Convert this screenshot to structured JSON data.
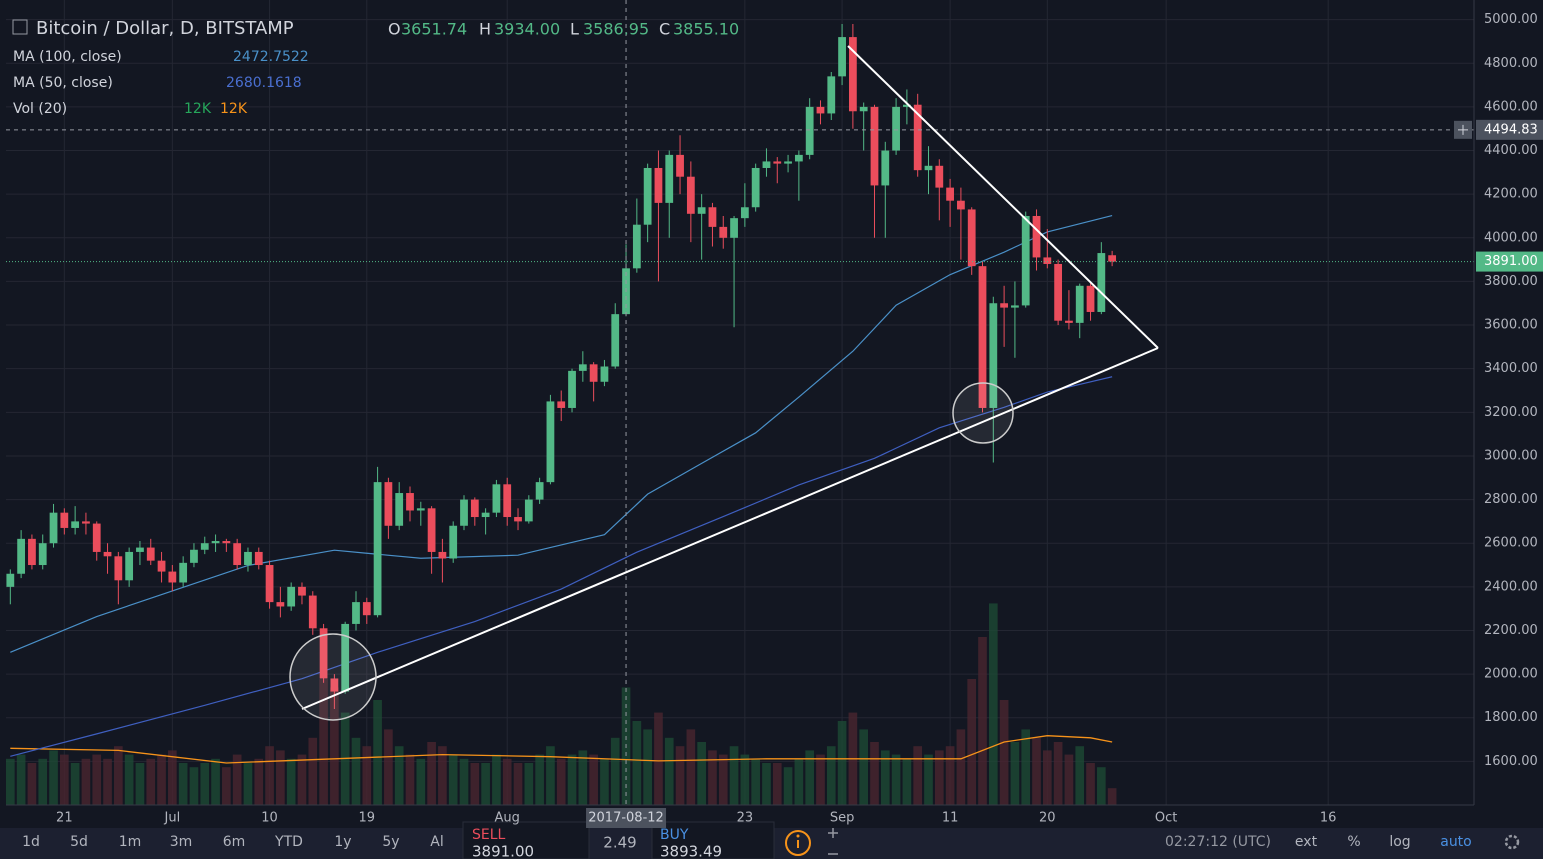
{
  "header": {
    "symbol": "Bitcoin / Dollar, D, BITSTAMP",
    "o_label": "O",
    "o": "3651.74",
    "h_label": "H",
    "h": "3934.00",
    "l_label": "L",
    "l": "3586.95",
    "c_label": "C",
    "c": "3855.10"
  },
  "legend": [
    {
      "name": "MA (100, close)",
      "value": "2472.7522"
    },
    {
      "name": "MA (50, close)",
      "value": "2680.1618"
    },
    {
      "name": "Vol (20)",
      "value": "12K",
      "value2": "12K"
    }
  ],
  "toolbar": {
    "ranges": [
      "1d",
      "5d",
      "1m",
      "3m",
      "6m",
      "YTD",
      "1y",
      "5y",
      "Al"
    ],
    "sell_label": "SELL",
    "sell": "3891.00",
    "spread": "2.49",
    "buy_label": "BUY",
    "buy": "3893.49",
    "clock": "02:27:12 (UTC)",
    "ext": "ext",
    "percent": "%",
    "log": "log",
    "auto": "auto"
  },
  "chart_data": {
    "type": "candlestick",
    "up_color": "#53b987",
    "down_color": "#eb4d5c",
    "xlim": [
      -0.4,
      135.5
    ],
    "xticks": [
      {
        "value": 5,
        "label": "21"
      },
      {
        "value": 15,
        "label": "Jul"
      },
      {
        "value": 24,
        "label": "10"
      },
      {
        "value": 33,
        "label": "19"
      },
      {
        "value": 46,
        "label": "Aug"
      },
      {
        "value": 68,
        "label": "23"
      },
      {
        "value": 77,
        "label": "Sep"
      },
      {
        "value": 87,
        "label": "11"
      },
      {
        "value": 96,
        "label": "20"
      },
      {
        "value": 107,
        "label": "Oct"
      },
      {
        "value": 122,
        "label": "16"
      }
    ],
    "ylim": [
      1400,
      5090
    ],
    "yticks": [
      {
        "value": 1600,
        "label": "1600.00"
      },
      {
        "value": 1800,
        "label": "1800.00"
      },
      {
        "value": 2000,
        "label": "2000.00"
      },
      {
        "value": 2200,
        "label": "2200.00"
      },
      {
        "value": 2400,
        "label": "2400.00"
      },
      {
        "value": 2600,
        "label": "2600.00"
      },
      {
        "value": 2800,
        "label": "2800.00"
      },
      {
        "value": 3000,
        "label": "3000.00"
      },
      {
        "value": 3200,
        "label": "3200.00"
      },
      {
        "value": 3400,
        "label": "3400.00"
      },
      {
        "value": 3600,
        "label": "3600.00"
      },
      {
        "value": 3800,
        "label": "3800.00"
      },
      {
        "value": 4000,
        "label": "4000.00"
      },
      {
        "value": 4200,
        "label": "4200.00"
      },
      {
        "value": 4400,
        "label": "4400.00"
      },
      {
        "value": 4600,
        "label": "4600.00"
      },
      {
        "value": 4800,
        "label": "4800.00"
      },
      {
        "value": 5000,
        "label": "5000.00"
      }
    ],
    "grid": true,
    "candles": [
      [
        2400,
        2480,
        2320,
        2460
      ],
      [
        2460,
        2660,
        2440,
        2620
      ],
      [
        2620,
        2640,
        2480,
        2500
      ],
      [
        2500,
        2640,
        2480,
        2600
      ],
      [
        2600,
        2780,
        2580,
        2740
      ],
      [
        2740,
        2760,
        2640,
        2670
      ],
      [
        2670,
        2770,
        2640,
        2700
      ],
      [
        2700,
        2740,
        2640,
        2690
      ],
      [
        2690,
        2700,
        2520,
        2560
      ],
      [
        2560,
        2600,
        2460,
        2540
      ],
      [
        2540,
        2560,
        2320,
        2430
      ],
      [
        2430,
        2580,
        2400,
        2560
      ],
      [
        2560,
        2610,
        2500,
        2580
      ],
      [
        2580,
        2620,
        2500,
        2520
      ],
      [
        2520,
        2560,
        2420,
        2470
      ],
      [
        2470,
        2500,
        2380,
        2420
      ],
      [
        2420,
        2540,
        2400,
        2510
      ],
      [
        2510,
        2600,
        2490,
        2570
      ],
      [
        2570,
        2630,
        2550,
        2600
      ],
      [
        2600,
        2640,
        2560,
        2610
      ],
      [
        2610,
        2620,
        2560,
        2600
      ],
      [
        2600,
        2620,
        2480,
        2500
      ],
      [
        2500,
        2580,
        2470,
        2560
      ],
      [
        2560,
        2580,
        2480,
        2500
      ],
      [
        2500,
        2520,
        2300,
        2330
      ],
      [
        2330,
        2400,
        2260,
        2310
      ],
      [
        2310,
        2420,
        2290,
        2400
      ],
      [
        2400,
        2420,
        2320,
        2360
      ],
      [
        2360,
        2380,
        2180,
        2210
      ],
      [
        2210,
        2230,
        1960,
        1980
      ],
      [
        1980,
        2000,
        1840,
        1920
      ],
      [
        1920,
        2240,
        1910,
        2230
      ],
      [
        2230,
        2380,
        2200,
        2330
      ],
      [
        2330,
        2350,
        2230,
        2270
      ],
      [
        2270,
        2950,
        2260,
        2880
      ],
      [
        2880,
        2900,
        2620,
        2680
      ],
      [
        2680,
        2880,
        2660,
        2830
      ],
      [
        2830,
        2860,
        2700,
        2750
      ],
      [
        2750,
        2790,
        2680,
        2760
      ],
      [
        2760,
        2770,
        2460,
        2560
      ],
      [
        2560,
        2620,
        2420,
        2530
      ],
      [
        2530,
        2700,
        2510,
        2680
      ],
      [
        2680,
        2820,
        2660,
        2800
      ],
      [
        2800,
        2810,
        2680,
        2720
      ],
      [
        2720,
        2760,
        2640,
        2740
      ],
      [
        2740,
        2890,
        2720,
        2870
      ],
      [
        2870,
        2900,
        2680,
        2720
      ],
      [
        2720,
        2760,
        2660,
        2700
      ],
      [
        2700,
        2820,
        2690,
        2800
      ],
      [
        2800,
        2900,
        2780,
        2880
      ],
      [
        2880,
        3280,
        2870,
        3250
      ],
      [
        3250,
        3300,
        3160,
        3220
      ],
      [
        3220,
        3400,
        3200,
        3390
      ],
      [
        3390,
        3480,
        3340,
        3420
      ],
      [
        3420,
        3430,
        3250,
        3340
      ],
      [
        3340,
        3440,
        3320,
        3410
      ],
      [
        3410,
        3700,
        3400,
        3650
      ],
      [
        3650,
        3970,
        3640,
        3860
      ],
      [
        3860,
        4180,
        3840,
        4060
      ],
      [
        4060,
        4340,
        3980,
        4320
      ],
      [
        4320,
        4400,
        3800,
        4160
      ],
      [
        4160,
        4400,
        4000,
        4380
      ],
      [
        4380,
        4470,
        4200,
        4280
      ],
      [
        4280,
        4350,
        3980,
        4110
      ],
      [
        4110,
        4200,
        3900,
        4140
      ],
      [
        4140,
        4160,
        3960,
        4050
      ],
      [
        4050,
        4100,
        3950,
        4000
      ],
      [
        4000,
        4100,
        3590,
        4090
      ],
      [
        4090,
        4250,
        4050,
        4140
      ],
      [
        4140,
        4340,
        4120,
        4320
      ],
      [
        4320,
        4410,
        4280,
        4350
      ],
      [
        4350,
        4370,
        4250,
        4340
      ],
      [
        4340,
        4380,
        4300,
        4350
      ],
      [
        4350,
        4400,
        4170,
        4380
      ],
      [
        4380,
        4640,
        4360,
        4600
      ],
      [
        4600,
        4630,
        4520,
        4570
      ],
      [
        4570,
        4760,
        4540,
        4740
      ],
      [
        4740,
        4980,
        4700,
        4920
      ],
      [
        4920,
        4980,
        4500,
        4580
      ],
      [
        4580,
        4620,
        4400,
        4600
      ],
      [
        4600,
        4610,
        4000,
        4240
      ],
      [
        4240,
        4440,
        4000,
        4400
      ],
      [
        4400,
        4640,
        4380,
        4600
      ],
      [
        4600,
        4680,
        4520,
        4610
      ],
      [
        4610,
        4660,
        4280,
        4310
      ],
      [
        4310,
        4420,
        4200,
        4330
      ],
      [
        4330,
        4360,
        4080,
        4230
      ],
      [
        4230,
        4270,
        4050,
        4170
      ],
      [
        4170,
        4230,
        3900,
        4130
      ],
      [
        4130,
        4140,
        3830,
        3870
      ],
      [
        3870,
        3890,
        3200,
        3220
      ],
      [
        3220,
        3730,
        2970,
        3700
      ],
      [
        3700,
        3780,
        3500,
        3680
      ],
      [
        3680,
        3800,
        3450,
        3690
      ],
      [
        3690,
        4120,
        3680,
        4100
      ],
      [
        4100,
        4130,
        3850,
        3910
      ],
      [
        3910,
        4040,
        3860,
        3880
      ],
      [
        3880,
        3900,
        3600,
        3620
      ],
      [
        3620,
        3760,
        3580,
        3610
      ],
      [
        3610,
        3790,
        3540,
        3780
      ],
      [
        3780,
        3800,
        3620,
        3660
      ],
      [
        3660,
        3980,
        3650,
        3930
      ],
      [
        3920,
        3940,
        3870,
        3891
      ]
    ],
    "volume": [
      11,
      12,
      10,
      11,
      13,
      12,
      10,
      11,
      12,
      11,
      14,
      12,
      10,
      11,
      12,
      13,
      10,
      9,
      10,
      11,
      9,
      12,
      10,
      11,
      14,
      13,
      11,
      12,
      16,
      30,
      28,
      22,
      16,
      14,
      25,
      18,
      14,
      12,
      11,
      15,
      14,
      12,
      11,
      10,
      10,
      12,
      11,
      10,
      10,
      12,
      14,
      11,
      12,
      13,
      12,
      11,
      16,
      28,
      20,
      18,
      22,
      16,
      14,
      18,
      15,
      13,
      12,
      14,
      12,
      11,
      10,
      10,
      9,
      11,
      13,
      12,
      14,
      20,
      22,
      18,
      15,
      13,
      12,
      11,
      14,
      12,
      13,
      14,
      18,
      30,
      40,
      48,
      25,
      15,
      18,
      16,
      13,
      15,
      12,
      14,
      10,
      9,
      4
    ],
    "ma100": {
      "x": [
        0,
        8,
        15,
        22,
        30,
        33,
        38,
        47,
        55,
        59,
        64,
        69,
        73,
        78,
        82,
        87,
        92,
        96,
        102
      ],
      "values": [
        2100,
        2264,
        2381,
        2498,
        2568,
        2554,
        2531,
        2545,
        2639,
        2825,
        2966,
        3106,
        3270,
        3480,
        3691,
        3831,
        3934,
        4027,
        4102
      ],
      "color": "#4a90c8"
    },
    "ma50": {
      "x": [
        0,
        8,
        18,
        27,
        34,
        43,
        51,
        58,
        66,
        73,
        80,
        86,
        92,
        96,
        102
      ],
      "values": [
        1623,
        1726,
        1857,
        1979,
        2100,
        2241,
        2390,
        2559,
        2722,
        2867,
        2989,
        3129,
        3223,
        3293,
        3363
      ],
      "color": "#3f5fc0"
    },
    "vol_ma": {
      "x": [
        0,
        10,
        20,
        30,
        40,
        50,
        60,
        70,
        80,
        88,
        92,
        96,
        100,
        102
      ],
      "values": [
        13.5,
        13,
        10,
        11,
        12,
        11.5,
        10.5,
        11,
        11,
        11,
        15,
        16.5,
        16,
        15
      ],
      "color": "#f7931a"
    },
    "crosshair": {
      "x": 57,
      "x_label": "2017-08-12",
      "y": 4494.83,
      "y_label": "4494.83"
    },
    "last_price": {
      "value": 3891,
      "label": "3891.00"
    }
  }
}
